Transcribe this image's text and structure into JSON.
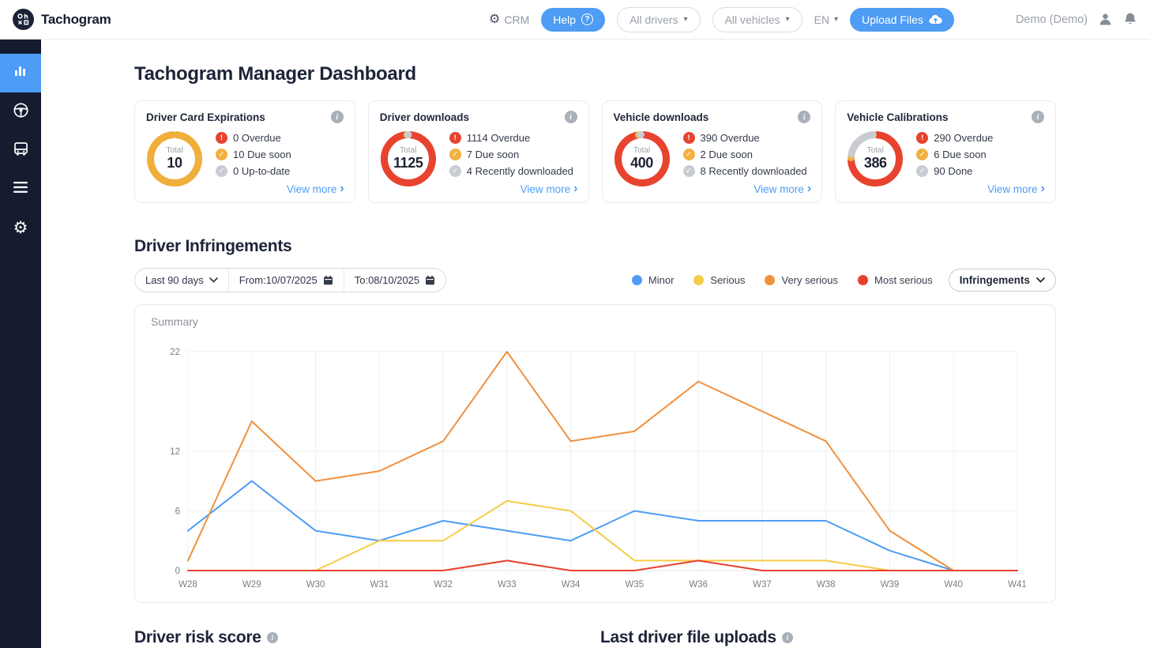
{
  "brand": {
    "name": "Tachogram"
  },
  "topbar": {
    "crm_label": "CRM",
    "help_label": "Help",
    "drivers_filter": "All drivers",
    "vehicles_filter": "All vehicles",
    "language": "EN",
    "upload_label": "Upload Files",
    "user_name": "Demo (Demo)"
  },
  "icons": {
    "gear": "⚙",
    "question": "?",
    "info": "i",
    "triangle_down": "▾",
    "chevron_right": "›",
    "alert": "!",
    "check": "✓"
  },
  "sidebar": {
    "items": [
      {
        "icon": "bar-chart-icon",
        "active": true
      },
      {
        "icon": "steering-wheel-icon",
        "active": false
      },
      {
        "icon": "bus-icon",
        "active": false
      },
      {
        "icon": "list-icon",
        "active": false
      },
      {
        "icon": "gear-icon",
        "active": false
      }
    ]
  },
  "page": {
    "title": "Tachogram Manager Dashboard"
  },
  "cards": [
    {
      "title": "Driver Card Expirations",
      "total_label": "Total",
      "total": "10",
      "rows": [
        {
          "icon": "alert",
          "text": "0 Overdue"
        },
        {
          "icon": "warn",
          "text": "10 Due soon"
        },
        {
          "icon": "ok",
          "text": "0 Up-to-date"
        }
      ],
      "view_more": "View more",
      "donut": [
        {
          "color": "yellow",
          "frac": 1.0
        }
      ]
    },
    {
      "title": "Driver downloads",
      "total_label": "Total",
      "total": "1125",
      "rows": [
        {
          "icon": "alert",
          "text": "1114 Overdue"
        },
        {
          "icon": "warn",
          "text": "7 Due soon"
        },
        {
          "icon": "ok",
          "text": "4 Recently downloaded"
        }
      ],
      "view_more": "View more",
      "donut": [
        {
          "color": "red",
          "frac": 0.99
        },
        {
          "color": "yellow",
          "frac": 0.006
        },
        {
          "color": "gray",
          "frac": 0.004
        }
      ]
    },
    {
      "title": "Vehicle downloads",
      "total_label": "Total",
      "total": "400",
      "rows": [
        {
          "icon": "alert",
          "text": "390 Overdue"
        },
        {
          "icon": "warn",
          "text": "2 Due soon"
        },
        {
          "icon": "ok",
          "text": "8 Recently downloaded"
        }
      ],
      "view_more": "View more",
      "donut": [
        {
          "color": "red",
          "frac": 0.975
        },
        {
          "color": "yellow",
          "frac": 0.005
        },
        {
          "color": "gray",
          "frac": 0.02
        }
      ]
    },
    {
      "title": "Vehicle Calibrations",
      "total_label": "Total",
      "total": "386",
      "rows": [
        {
          "icon": "alert",
          "text": "290 Overdue"
        },
        {
          "icon": "warn",
          "text": "6 Due soon"
        },
        {
          "icon": "ok",
          "text": "90 Done"
        }
      ],
      "view_more": "View more",
      "donut": [
        {
          "color": "red",
          "frac": 0.751
        },
        {
          "color": "yellow",
          "frac": 0.016
        },
        {
          "color": "gray",
          "frac": 0.233
        }
      ]
    }
  ],
  "infringements": {
    "title": "Driver Infringements",
    "range_label": "Last 90 days",
    "from_label": "From:10/07/2025",
    "to_label": "To:08/10/2025",
    "dropdown_label": "Infringements",
    "panel_title": "Summary"
  },
  "chart_data": {
    "type": "line",
    "title": "Summary",
    "categories": [
      "W28",
      "W29",
      "W30",
      "W31",
      "W32",
      "W33",
      "W34",
      "W35",
      "W36",
      "W37",
      "W38",
      "W39",
      "W40",
      "W41"
    ],
    "series": [
      {
        "name": "Minor",
        "color": "#4d9df5",
        "values": [
          4,
          9,
          4,
          3,
          5,
          4,
          3,
          6,
          5,
          5,
          5,
          2,
          0,
          0
        ]
      },
      {
        "name": "Serious",
        "color": "#f5cc47",
        "values": [
          0,
          0,
          0,
          3,
          3,
          7,
          6,
          1,
          1,
          1,
          1,
          0,
          0,
          0
        ]
      },
      {
        "name": "Very serious",
        "color": "#f0913c",
        "values": [
          1,
          15,
          9,
          10,
          13,
          22,
          13,
          14,
          19,
          16,
          13,
          4,
          0,
          0
        ]
      },
      {
        "name": "Most serious",
        "color": "#e8402c",
        "values": [
          0,
          0,
          0,
          0,
          0,
          1,
          0,
          0,
          1,
          0,
          0,
          0,
          0,
          0
        ]
      }
    ],
    "xlabel": "",
    "ylabel": "",
    "ylim": [
      0,
      22
    ],
    "yticks": [
      0,
      6,
      12,
      22
    ],
    "grid": true,
    "legend_position": "top-right-outside"
  },
  "legend": [
    {
      "label": "Minor",
      "color": "#4d9df5"
    },
    {
      "label": "Serious",
      "color": "#f5cc47"
    },
    {
      "label": "Very serious",
      "color": "#f0913c"
    },
    {
      "label": "Most serious",
      "color": "#e8402c"
    }
  ],
  "bottom": {
    "left_title": "Driver risk score",
    "right_title": "Last driver file uploads"
  },
  "colors": {
    "accent": "#4d9cf5",
    "red": "#e8432e",
    "yellow": "#f0ae3b",
    "gray": "#c9ccd1",
    "sidebar_bg": "#151c30",
    "active_item": "#4d9cf5"
  }
}
